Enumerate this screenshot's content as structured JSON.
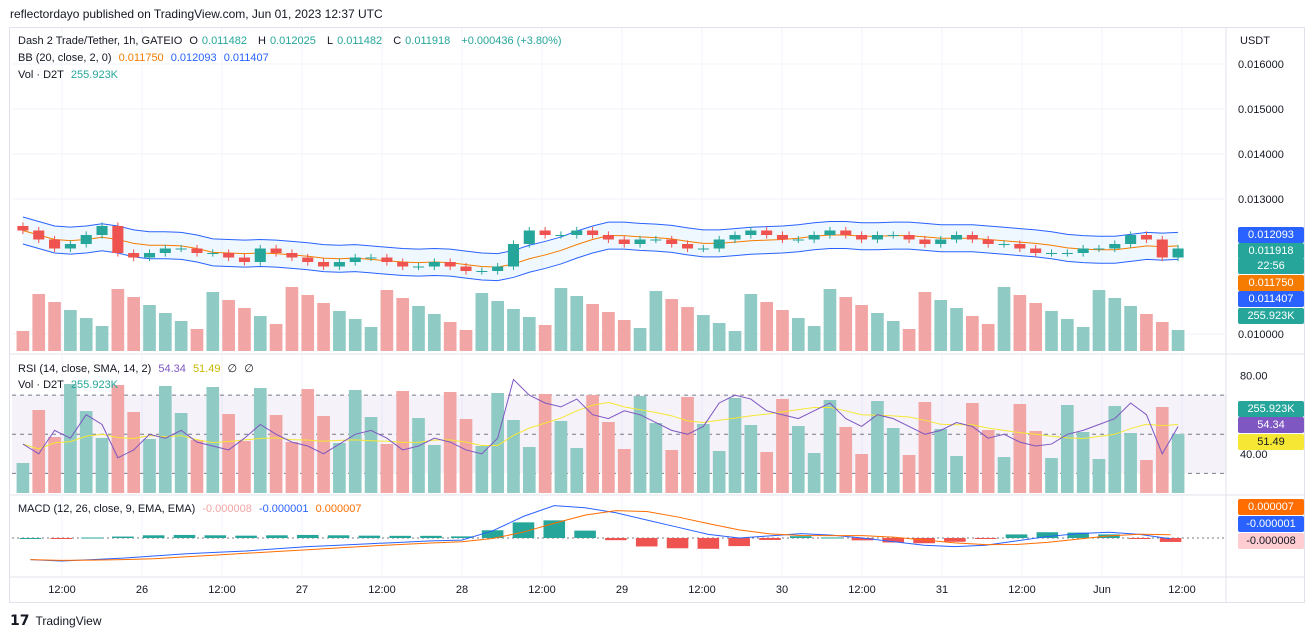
{
  "header": {
    "publisher_line": "reflectordayo published on TradingView.com, Jun 01, 2023 12:37 UTC"
  },
  "main_legend": {
    "symbol": "Dash 2 Trade/Tether, 1h, GATEIO",
    "o_label": "O",
    "o_value": "0.011482",
    "h_label": "H",
    "h_value": "0.012025",
    "l_label": "L",
    "l_value": "0.011482",
    "c_label": "C",
    "c_value": "0.011918",
    "change": "+0.000436 (+3.80%)",
    "bb_label": "BB (20, close, 2, 0)",
    "bb_basis": "0.011750",
    "bb_upper": "0.012093",
    "bb_lower": "0.011407",
    "vol_label": "Vol · D2T",
    "vol_value": "255.923K"
  },
  "rsi_legend": {
    "label": "RSI (14, close, SMA, 14, 2)",
    "rsi": "54.34",
    "sma": "51.49",
    "extra1": "∅",
    "extra2": "∅",
    "vol_label": "Vol · D2T",
    "vol_value": "255.923K"
  },
  "macd_legend": {
    "label": "MACD (12, 26, close, 9, EMA, EMA)",
    "hist": "-0.000008",
    "macd": "-0.000001",
    "signal": "0.000007"
  },
  "price_axis": {
    "currency": "USDT",
    "ticks": [
      "0.016000",
      "0.015000",
      "0.014000",
      "0.013000",
      "0.010000"
    ]
  },
  "price_badges": [
    {
      "text": "0.012093",
      "color": "#2962ff"
    },
    {
      "text": "0.011918",
      "color": "#26a69a"
    },
    {
      "text": "22:56",
      "color": "#26a69a"
    },
    {
      "text": "0.011750",
      "color": "#f57c00"
    },
    {
      "text": "0.011407",
      "color": "#2962ff"
    },
    {
      "text": "255.923K",
      "color": "#26a69a"
    }
  ],
  "rsi_axis": {
    "ticks": [
      "80.00",
      "40.00"
    ],
    "badges": [
      {
        "text": "255.923K",
        "color": "#26a69a"
      },
      {
        "text": "54.34",
        "color": "#7e57c2"
      },
      {
        "text": "51.49",
        "color": "#f5e733"
      }
    ]
  },
  "macd_axis": {
    "badges": [
      {
        "text": "0.000007",
        "color": "#ff6d00"
      },
      {
        "text": "-0.000001",
        "color": "#2962ff"
      },
      {
        "text": "-0.000008",
        "color": "#ffcdd2"
      }
    ]
  },
  "time_axis": [
    "12:00",
    "26",
    "12:00",
    "27",
    "12:00",
    "28",
    "12:00",
    "29",
    "12:00",
    "30",
    "12:00",
    "31",
    "12:00",
    "Jun",
    "12:00"
  ],
  "footer": {
    "brand": "TradingView"
  },
  "colors": {
    "up": "#26a69a",
    "down": "#ef5350",
    "vol_up": "#8fcac4",
    "vol_down": "#f1a5a4",
    "bb": "#2962ff",
    "basis": "#f57c00",
    "rsi_line": "#7e57c2",
    "rsi_sma": "#f5e733"
  },
  "chart_data": {
    "type": "candlestick",
    "title": "Dash 2 Trade/Tether, 1h, GATEIO",
    "ylabel": "USDT",
    "price_range": [
      0.0096,
      0.0168
    ],
    "close_series": [
      0.0123,
      0.0121,
      0.0119,
      0.012,
      0.0122,
      0.0124,
      0.0118,
      0.0117,
      0.0118,
      0.0119,
      0.0119,
      0.0118,
      0.0118,
      0.0117,
      0.0116,
      0.0119,
      0.0118,
      0.0117,
      0.0116,
      0.0115,
      0.0116,
      0.0117,
      0.0117,
      0.0116,
      0.0115,
      0.0115,
      0.0116,
      0.0115,
      0.0114,
      0.0114,
      0.0115,
      0.012,
      0.0123,
      0.0122,
      0.0122,
      0.0123,
      0.0122,
      0.0121,
      0.012,
      0.0121,
      0.0121,
      0.012,
      0.0119,
      0.0119,
      0.0121,
      0.0122,
      0.0123,
      0.0122,
      0.0121,
      0.0121,
      0.0122,
      0.0123,
      0.0122,
      0.0121,
      0.0122,
      0.0122,
      0.0121,
      0.012,
      0.0121,
      0.0122,
      0.0121,
      0.012,
      0.012,
      0.0119,
      0.0118,
      0.0118,
      0.0118,
      0.0119,
      0.0119,
      0.012,
      0.0122,
      0.0121,
      0.0117,
      0.0119
    ],
    "rsi_range": [
      20,
      90
    ],
    "rsi_series": [
      45,
      40,
      52,
      48,
      60,
      55,
      38,
      42,
      50,
      48,
      52,
      46,
      44,
      42,
      48,
      55,
      50,
      46,
      44,
      40,
      45,
      50,
      52,
      48,
      42,
      44,
      48,
      46,
      42,
      40,
      48,
      78,
      70,
      66,
      64,
      68,
      60,
      58,
      62,
      60,
      56,
      52,
      50,
      54,
      66,
      70,
      68,
      62,
      60,
      58,
      62,
      66,
      58,
      54,
      60,
      58,
      54,
      50,
      52,
      56,
      54,
      48,
      50,
      46,
      44,
      45,
      50,
      52,
      55,
      58,
      66,
      60,
      40,
      54
    ],
    "macd_series": [
      -3e-05,
      -3.2e-05,
      -3e-05,
      -2.8e-05,
      -2.5e-05,
      -2.2e-05,
      -2e-05,
      -1.8e-05,
      -1.5e-05,
      -1.2e-05,
      -1e-05,
      -8e-06,
      -6e-06,
      -4e-06,
      -3e-06,
      1e-05,
      3e-05,
      4.5e-05,
      4.2e-05,
      3.5e-05,
      2.5e-05,
      1.5e-05,
      5e-06,
      0.0,
      3e-06,
      6e-06,
      4e-06,
      0.0,
      -5e-06,
      -1e-05,
      -1.2e-05,
      -1e-05,
      -4e-06,
      2e-06,
      6e-06,
      8e-06,
      5e-06,
      -1e-06
    ]
  }
}
